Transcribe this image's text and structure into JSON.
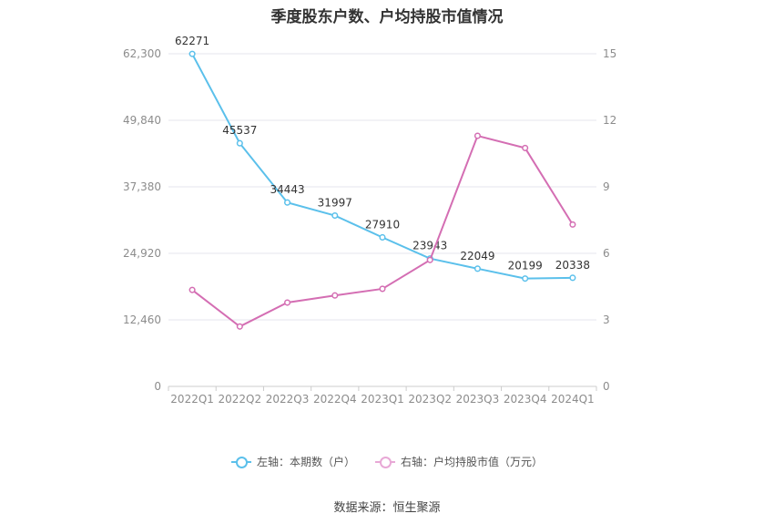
{
  "chart_data": {
    "type": "line",
    "title": "季度股东户数、户均持股市值情况",
    "categories": [
      "2022Q1",
      "2022Q2",
      "2022Q3",
      "2022Q4",
      "2023Q1",
      "2023Q2",
      "2023Q3",
      "2023Q4",
      "2024Q1"
    ],
    "left_axis": {
      "ticks": [
        "0",
        "12,460",
        "24,920",
        "37,380",
        "49,840",
        "62,300"
      ],
      "range": [
        0,
        62300
      ]
    },
    "right_axis": {
      "ticks": [
        "0",
        "3",
        "6",
        "9",
        "12",
        "15"
      ],
      "range": [
        0,
        15
      ]
    },
    "series": [
      {
        "name": "左轴：本期数（户）",
        "axis": "left",
        "color": "#5bc0eb",
        "values": [
          62271,
          45537,
          34443,
          31997,
          27910,
          23943,
          22049,
          20199,
          20338
        ],
        "labels": [
          "62271",
          "45537",
          "34443",
          "31997",
          "27910",
          "23943",
          "22049",
          "20199",
          "20338"
        ]
      },
      {
        "name": "右轴：户均持股市值（万元）",
        "axis": "right",
        "color": "#d46eb3",
        "values": [
          4.35,
          2.7,
          3.78,
          4.1,
          4.4,
          5.7,
          11.3,
          10.75,
          7.3
        ]
      }
    ],
    "grid": true,
    "legend_position": "bottom"
  },
  "source": "数据来源：恒生聚源"
}
